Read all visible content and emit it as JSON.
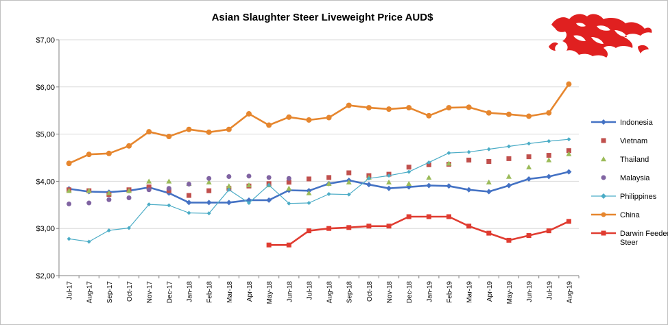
{
  "chart_data": {
    "type": "line",
    "title": "Asian Slaughter Steer Liveweight Price AUD$",
    "xlabel": "",
    "ylabel": "",
    "ylim": [
      2,
      7
    ],
    "yticks": [
      "$2,00",
      "$3,00",
      "$4,00",
      "$5,00",
      "$6,00",
      "$7,00"
    ],
    "grid": "horizontal",
    "legend_position": "right",
    "categories": [
      "Jul-17",
      "Aug-17",
      "Sep-17",
      "Oct-17",
      "Nov-17",
      "Dec-17",
      "Jan-18",
      "Feb-18",
      "Mar-18",
      "Apr-18",
      "May-18",
      "Jun-18",
      "Jul-18",
      "Aug-18",
      "Sep-18",
      "Oct-18",
      "Nov-18",
      "Dec-18",
      "Jan-19",
      "Feb-19",
      "Mar-19",
      "Apr-19",
      "May-19",
      "Jun-19",
      "Jul-19",
      "Aug-19"
    ],
    "series": [
      {
        "name": "Indonesia",
        "color": "#4472c4",
        "style": "line",
        "marker": "diamond",
        "values": [
          3.84,
          3.78,
          3.77,
          3.8,
          3.87,
          3.75,
          3.55,
          3.55,
          3.55,
          3.6,
          3.6,
          3.81,
          3.8,
          3.95,
          4.02,
          3.93,
          3.85,
          3.88,
          3.91,
          3.9,
          3.82,
          3.78,
          3.91,
          4.05,
          4.1,
          4.2
        ]
      },
      {
        "name": "Vietnam",
        "color": "#c0504d",
        "style": "markers",
        "marker": "square",
        "values": [
          3.82,
          3.8,
          3.72,
          3.82,
          3.88,
          3.8,
          3.7,
          3.8,
          3.85,
          3.9,
          3.95,
          3.98,
          4.05,
          4.08,
          4.18,
          4.12,
          4.15,
          4.3,
          4.35,
          4.36,
          4.45,
          4.42,
          4.48,
          4.52,
          4.55,
          4.65
        ]
      },
      {
        "name": "Thailand",
        "color": "#9bbb59",
        "style": "markers",
        "marker": "triangle",
        "values": [
          3.8,
          3.8,
          3.75,
          3.8,
          4.0,
          4.0,
          3.95,
          3.98,
          3.9,
          3.92,
          3.92,
          3.85,
          3.75,
          3.95,
          3.98,
          4.08,
          3.98,
          3.95,
          4.08,
          4.38,
          null,
          3.98,
          4.1,
          4.3,
          4.45,
          4.58
        ]
      },
      {
        "name": "Malaysia",
        "color": "#8064a2",
        "style": "markers",
        "marker": "circle",
        "values": [
          3.52,
          3.54,
          3.61,
          3.65,
          3.82,
          3.85,
          3.94,
          4.06,
          4.1,
          4.11,
          4.08,
          4.06,
          null,
          null,
          null,
          null,
          null,
          null,
          null,
          null,
          null,
          null,
          null,
          null,
          null,
          null
        ]
      },
      {
        "name": "Philippines",
        "color": "#4bacc6",
        "style": "line-thin",
        "marker": "diamond",
        "values": [
          2.78,
          2.72,
          2.96,
          3.01,
          3.51,
          3.49,
          3.33,
          3.32,
          3.82,
          3.54,
          3.92,
          3.53,
          3.54,
          3.73,
          3.72,
          4.06,
          4.12,
          4.2,
          4.4,
          4.6,
          4.62,
          4.68,
          4.74,
          4.8,
          4.85,
          4.89
        ]
      },
      {
        "name": "China",
        "color": "#e6862e",
        "style": "line",
        "marker": "circle",
        "values": [
          4.38,
          4.57,
          4.59,
          4.75,
          5.05,
          4.95,
          5.1,
          5.04,
          5.1,
          5.43,
          5.19,
          5.36,
          5.3,
          5.35,
          5.61,
          5.56,
          5.53,
          5.56,
          5.39,
          5.56,
          5.57,
          5.45,
          5.42,
          5.38,
          5.45,
          6.06
        ]
      },
      {
        "name": "Darwin Feeder Steer",
        "legend_lines": [
          "Darwin Feeder",
          "Steer"
        ],
        "color": "#e03c31",
        "style": "step",
        "marker": "square",
        "values": [
          null,
          null,
          null,
          null,
          null,
          null,
          null,
          null,
          null,
          null,
          2.65,
          2.65,
          2.95,
          3.0,
          3.02,
          3.05,
          3.05,
          3.25,
          3.25,
          3.25,
          3.05,
          2.9,
          2.75,
          2.85,
          2.95,
          3.15
        ]
      }
    ]
  },
  "logo": {
    "name": "red-dragon-logo",
    "color": "#e02020"
  }
}
